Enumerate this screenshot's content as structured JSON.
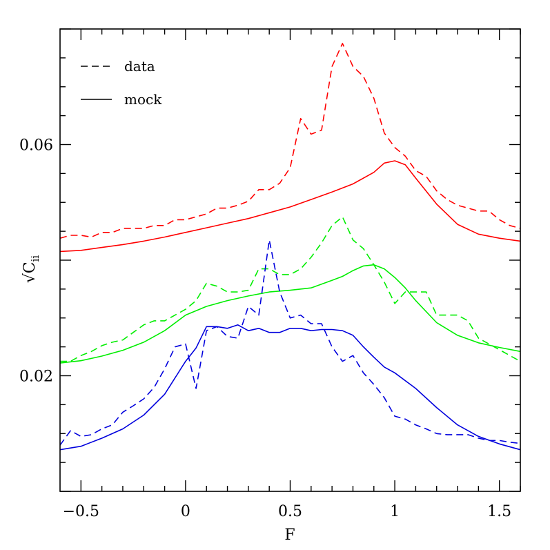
{
  "chart_data": {
    "type": "line",
    "xlabel": "F",
    "ylabel": "√C",
    "ylabel_subscript": "ii",
    "xlim": [
      -0.6,
      1.6
    ],
    "ylim": [
      0.0,
      0.08
    ],
    "x_ticks": [
      {
        "value": -0.5,
        "label": "−0.5"
      },
      {
        "value": 0,
        "label": "0"
      },
      {
        "value": 0.5,
        "label": "0.5"
      },
      {
        "value": 1,
        "label": "1"
      },
      {
        "value": 1.5,
        "label": "1.5"
      }
    ],
    "y_ticks": [
      {
        "value": 0.02,
        "label": "0.02"
      },
      {
        "value": 0.06,
        "label": "0.06"
      }
    ],
    "grid": false,
    "legend": {
      "placement": "top-left",
      "entries": [
        {
          "label": "data",
          "style": "dashed"
        },
        {
          "label": "mock",
          "style": "solid"
        }
      ]
    },
    "series": [
      {
        "color": "#ff0000",
        "style": "dashed",
        "x": [
          -0.6,
          -0.55,
          -0.5,
          -0.45,
          -0.4,
          -0.35,
          -0.3,
          -0.25,
          -0.2,
          -0.15,
          -0.1,
          -0.05,
          0,
          0.05,
          0.1,
          0.15,
          0.2,
          0.25,
          0.3,
          0.35,
          0.4,
          0.45,
          0.5,
          0.55,
          0.6,
          0.65,
          0.7,
          0.75,
          0.8,
          0.85,
          0.9,
          0.95,
          1,
          1.05,
          1.1,
          1.15,
          1.2,
          1.25,
          1.3,
          1.35,
          1.4,
          1.45,
          1.5,
          1.55,
          1.6
        ],
        "y": [
          0.0438,
          0.0443,
          0.0443,
          0.044,
          0.0448,
          0.0448,
          0.0455,
          0.0455,
          0.0455,
          0.046,
          0.046,
          0.047,
          0.047,
          0.0475,
          0.048,
          0.049,
          0.049,
          0.0495,
          0.0502,
          0.0522,
          0.0522,
          0.0533,
          0.056,
          0.0645,
          0.0618,
          0.0625,
          0.0735,
          0.0775,
          0.0735,
          0.0718,
          0.068,
          0.062,
          0.0595,
          0.058,
          0.0555,
          0.0545,
          0.052,
          0.0505,
          0.0495,
          0.049,
          0.0485,
          0.0485,
          0.047,
          0.046,
          0.0455
        ]
      },
      {
        "color": "#ff0000",
        "style": "solid",
        "x": [
          -0.6,
          -0.5,
          -0.4,
          -0.3,
          -0.2,
          -0.1,
          0,
          0.1,
          0.2,
          0.3,
          0.4,
          0.5,
          0.6,
          0.7,
          0.8,
          0.9,
          0.95,
          1.0,
          1.05,
          1.1,
          1.2,
          1.3,
          1.4,
          1.5,
          1.6
        ],
        "y": [
          0.0415,
          0.0417,
          0.0422,
          0.0427,
          0.0433,
          0.044,
          0.0448,
          0.0456,
          0.0464,
          0.0472,
          0.0482,
          0.0492,
          0.0505,
          0.0518,
          0.0532,
          0.0552,
          0.0568,
          0.0572,
          0.0565,
          0.0542,
          0.0497,
          0.0462,
          0.0445,
          0.0438,
          0.0433
        ]
      },
      {
        "color": "#00ee00",
        "style": "dashed",
        "x": [
          -0.6,
          -0.55,
          -0.5,
          -0.45,
          -0.4,
          -0.35,
          -0.3,
          -0.25,
          -0.2,
          -0.15,
          -0.1,
          -0.05,
          0,
          0.05,
          0.1,
          0.15,
          0.2,
          0.25,
          0.3,
          0.35,
          0.4,
          0.45,
          0.5,
          0.55,
          0.6,
          0.65,
          0.7,
          0.75,
          0.8,
          0.85,
          0.9,
          0.95,
          1,
          1.05,
          1.1,
          1.15,
          1.2,
          1.25,
          1.3,
          1.35,
          1.4,
          1.45,
          1.5,
          1.55,
          1.6
        ],
        "y": [
          0.0225,
          0.0225,
          0.0235,
          0.0242,
          0.0252,
          0.0258,
          0.0262,
          0.0275,
          0.0288,
          0.0295,
          0.0295,
          0.0305,
          0.0315,
          0.033,
          0.036,
          0.0355,
          0.0345,
          0.0345,
          0.0348,
          0.0385,
          0.0385,
          0.0375,
          0.0375,
          0.0385,
          0.0405,
          0.043,
          0.046,
          0.0475,
          0.0435,
          0.042,
          0.0392,
          0.0362,
          0.0325,
          0.0345,
          0.0345,
          0.0345,
          0.0305,
          0.0305,
          0.0305,
          0.0295,
          0.0265,
          0.0255,
          0.0245,
          0.0235,
          0.0225
        ]
      },
      {
        "color": "#00ee00",
        "style": "solid",
        "x": [
          -0.6,
          -0.5,
          -0.4,
          -0.3,
          -0.2,
          -0.1,
          0,
          0.1,
          0.2,
          0.3,
          0.4,
          0.5,
          0.6,
          0.7,
          0.75,
          0.8,
          0.85,
          0.9,
          0.95,
          1.0,
          1.05,
          1.1,
          1.2,
          1.3,
          1.4,
          1.5,
          1.6
        ],
        "y": [
          0.0222,
          0.0226,
          0.0234,
          0.0244,
          0.0258,
          0.0278,
          0.0305,
          0.032,
          0.033,
          0.0338,
          0.0345,
          0.0348,
          0.0352,
          0.0365,
          0.0372,
          0.0382,
          0.039,
          0.0392,
          0.0385,
          0.037,
          0.0352,
          0.033,
          0.0292,
          0.027,
          0.0257,
          0.0249,
          0.0242
        ]
      },
      {
        "color": "#0000dd",
        "style": "dashed",
        "x": [
          -0.6,
          -0.55,
          -0.5,
          -0.45,
          -0.4,
          -0.35,
          -0.3,
          -0.25,
          -0.2,
          -0.15,
          -0.1,
          -0.05,
          0,
          0.05,
          0.1,
          0.15,
          0.2,
          0.25,
          0.3,
          0.35,
          0.4,
          0.45,
          0.5,
          0.55,
          0.6,
          0.65,
          0.7,
          0.75,
          0.8,
          0.85,
          0.9,
          0.95,
          1,
          1.05,
          1.1,
          1.15,
          1.2,
          1.25,
          1.3,
          1.35,
          1.4,
          1.45,
          1.5,
          1.55,
          1.6
        ],
        "y": [
          0.008,
          0.0105,
          0.0095,
          0.0098,
          0.0108,
          0.0115,
          0.0137,
          0.0148,
          0.016,
          0.018,
          0.0212,
          0.025,
          0.0255,
          0.0178,
          0.0278,
          0.0285,
          0.0268,
          0.0265,
          0.032,
          0.0305,
          0.0435,
          0.0345,
          0.03,
          0.0305,
          0.029,
          0.029,
          0.025,
          0.0225,
          0.0235,
          0.0205,
          0.0185,
          0.0162,
          0.013,
          0.0125,
          0.0115,
          0.0108,
          0.01,
          0.0098,
          0.0098,
          0.0098,
          0.0092,
          0.0088,
          0.0088,
          0.0085,
          0.0083
        ]
      },
      {
        "color": "#0000dd",
        "style": "solid",
        "x": [
          -0.6,
          -0.5,
          -0.4,
          -0.3,
          -0.2,
          -0.1,
          0,
          0.05,
          0.1,
          0.15,
          0.2,
          0.25,
          0.3,
          0.35,
          0.4,
          0.45,
          0.5,
          0.55,
          0.6,
          0.65,
          0.7,
          0.75,
          0.8,
          0.85,
          0.9,
          0.95,
          1.0,
          1.1,
          1.2,
          1.3,
          1.4,
          1.5,
          1.6
        ],
        "y": [
          0.0072,
          0.0078,
          0.0092,
          0.0108,
          0.0132,
          0.0168,
          0.0225,
          0.0248,
          0.0285,
          0.0285,
          0.0282,
          0.0288,
          0.0278,
          0.0282,
          0.0275,
          0.0275,
          0.0282,
          0.0282,
          0.0278,
          0.028,
          0.028,
          0.0278,
          0.027,
          0.025,
          0.0232,
          0.0215,
          0.0205,
          0.0178,
          0.0145,
          0.0115,
          0.0095,
          0.0082,
          0.0072
        ]
      }
    ]
  }
}
